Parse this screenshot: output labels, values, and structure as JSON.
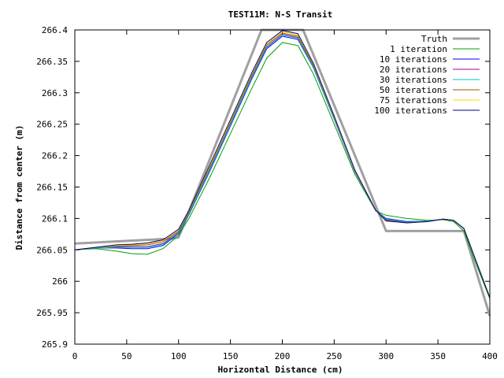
{
  "chart_data": {
    "type": "line",
    "title": "TEST11M: N-S Transit",
    "xlabel": "Horizontal Distance (cm)",
    "ylabel": "Distance from center (m)",
    "xlim": [
      0,
      400
    ],
    "ylim": [
      265.9,
      266.4
    ],
    "xticks": [
      0,
      50,
      100,
      150,
      200,
      250,
      300,
      350,
      400
    ],
    "xtick_labels": [
      "0",
      "50",
      "100",
      "150",
      "200",
      "250",
      "300",
      "350",
      "400"
    ],
    "yticks": [
      265.9,
      265.95,
      266.0,
      266.05,
      266.1,
      266.15,
      266.2,
      266.25,
      266.3,
      266.35,
      266.4
    ],
    "ytick_labels": [
      "265.9",
      "265.95",
      "266",
      "266.05",
      "266.1",
      "266.15",
      "266.2",
      "266.25",
      "266.3",
      "266.35",
      "266.4"
    ],
    "grid": false,
    "legend_position": "top-right",
    "series": [
      {
        "name": "Truth",
        "color": "#a0a0a0",
        "x": [
          0,
          95,
          100,
          180,
          220,
          300,
          375,
          400
        ],
        "y": [
          266.06,
          266.068,
          266.07,
          266.4,
          266.4,
          266.08,
          266.08,
          265.945
        ]
      },
      {
        "name": "1 iteration",
        "color": "#00a000",
        "x": [
          0,
          20,
          40,
          55,
          70,
          85,
          100,
          110,
          130,
          150,
          170,
          185,
          200,
          215,
          230,
          250,
          270,
          290,
          300,
          320,
          340,
          355,
          365,
          375,
          385,
          400
        ],
        "y": [
          266.05,
          266.052,
          266.048,
          266.044,
          266.043,
          266.052,
          266.073,
          266.1,
          266.165,
          266.235,
          266.305,
          266.355,
          266.38,
          266.375,
          266.33,
          266.25,
          266.17,
          266.112,
          266.105,
          266.1,
          266.097,
          266.098,
          266.095,
          266.08,
          266.035,
          265.972
        ]
      },
      {
        "name": "10 iterations",
        "color": "#0000ff",
        "x": [
          0,
          20,
          40,
          55,
          70,
          85,
          100,
          110,
          130,
          150,
          170,
          185,
          200,
          215,
          230,
          250,
          270,
          290,
          300,
          320,
          340,
          355,
          365,
          375,
          385,
          400
        ],
        "y": [
          266.05,
          266.053,
          266.053,
          266.052,
          266.052,
          266.057,
          266.076,
          266.106,
          266.175,
          266.247,
          266.32,
          266.37,
          266.39,
          266.385,
          266.34,
          266.258,
          266.174,
          266.113,
          266.1,
          266.095,
          266.096,
          266.099,
          266.097,
          266.084,
          266.04,
          265.974
        ]
      },
      {
        "name": "20 iterations",
        "color": "#a000a0",
        "x": [
          0,
          20,
          40,
          55,
          70,
          85,
          100,
          110,
          130,
          150,
          170,
          185,
          200,
          215,
          230,
          250,
          270,
          290,
          300,
          320,
          340,
          355,
          365,
          375,
          385,
          400
        ],
        "y": [
          266.05,
          266.053,
          266.055,
          266.055,
          266.055,
          266.06,
          266.078,
          266.108,
          266.178,
          266.25,
          266.323,
          266.373,
          266.393,
          266.388,
          266.342,
          266.26,
          266.175,
          266.113,
          266.098,
          266.094,
          266.096,
          266.099,
          266.097,
          266.084,
          266.04,
          265.974
        ]
      },
      {
        "name": "30 iterations",
        "color": "#00c0c0",
        "x": [
          0,
          20,
          40,
          55,
          70,
          85,
          100,
          110,
          130,
          150,
          170,
          185,
          200,
          215,
          230,
          250,
          270,
          290,
          300,
          320,
          340,
          355,
          365,
          375,
          385,
          400
        ],
        "y": [
          266.05,
          266.053,
          266.054,
          266.054,
          266.054,
          266.059,
          266.077,
          266.107,
          266.177,
          266.249,
          266.322,
          266.372,
          266.392,
          266.387,
          266.341,
          266.259,
          266.175,
          266.113,
          266.099,
          266.094,
          266.096,
          266.099,
          266.097,
          266.084,
          266.04,
          265.974
        ]
      },
      {
        "name": "50 iterations",
        "color": "#a05000",
        "x": [
          0,
          20,
          40,
          55,
          70,
          85,
          100,
          110,
          130,
          150,
          170,
          185,
          200,
          215,
          230,
          250,
          270,
          290,
          300,
          320,
          340,
          355,
          365,
          375,
          385,
          400
        ],
        "y": [
          266.05,
          266.054,
          266.056,
          266.057,
          266.058,
          266.063,
          266.08,
          266.11,
          266.181,
          266.253,
          266.326,
          266.376,
          266.395,
          266.39,
          266.344,
          266.261,
          266.176,
          266.113,
          266.097,
          266.093,
          266.095,
          266.099,
          266.097,
          266.084,
          266.04,
          265.974
        ]
      },
      {
        "name": "75 iterations",
        "color": "#ffd700",
        "x": [
          0,
          20,
          40,
          55,
          70,
          85,
          100,
          110,
          130,
          150,
          170,
          185,
          200,
          215,
          230,
          250,
          270,
          290,
          300,
          320,
          340,
          355,
          365,
          375,
          385,
          400
        ],
        "y": [
          266.05,
          266.054,
          266.057,
          266.058,
          266.06,
          266.065,
          266.082,
          266.112,
          266.183,
          266.255,
          266.328,
          266.378,
          266.397,
          266.392,
          266.346,
          266.262,
          266.176,
          266.113,
          266.096,
          266.093,
          266.095,
          266.099,
          266.097,
          266.084,
          266.04,
          265.974
        ]
      },
      {
        "name": "100 iterations",
        "color": "#000080",
        "x": [
          0,
          20,
          40,
          55,
          70,
          85,
          100,
          110,
          130,
          150,
          170,
          185,
          200,
          215,
          230,
          250,
          270,
          290,
          300,
          320,
          340,
          355,
          365,
          375,
          385,
          400
        ],
        "y": [
          266.05,
          266.054,
          266.058,
          266.059,
          266.061,
          266.066,
          266.083,
          266.113,
          266.185,
          266.257,
          266.33,
          266.38,
          266.399,
          266.394,
          266.347,
          266.263,
          266.177,
          266.113,
          266.096,
          266.093,
          266.095,
          266.099,
          266.097,
          266.084,
          266.04,
          265.974
        ]
      }
    ]
  }
}
